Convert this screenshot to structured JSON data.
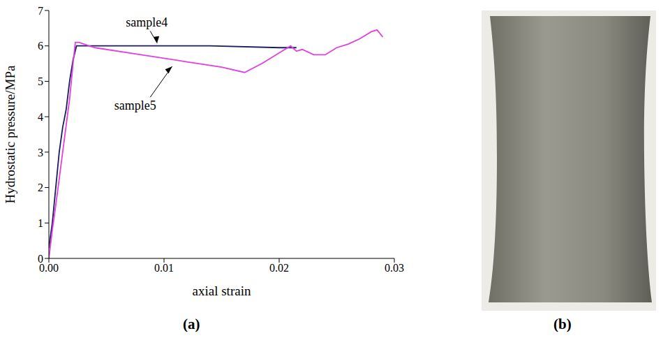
{
  "chart_data": {
    "type": "line",
    "x_label": "axial strain",
    "y_label": "Hydrostatic pressure/MPa",
    "xlim": [
      0,
      0.03
    ],
    "ylim": [
      0,
      7
    ],
    "xticks": [
      {
        "value": 0,
        "label": "0.00"
      },
      0.01,
      0.02,
      0.03
    ],
    "yticks": [
      0,
      1,
      2,
      3,
      4,
      5,
      6,
      7
    ],
    "series": [
      {
        "name": "sample4",
        "color": "#1c1c60",
        "x": [
          0,
          0.0003,
          0.0006,
          0.0009,
          0.0012,
          0.0015,
          0.0018,
          0.0021,
          0.0024,
          0.005,
          0.014,
          0.02,
          0.0215
        ],
        "values": [
          0.3,
          1,
          2,
          3,
          3.7,
          4.2,
          5,
          5.6,
          6.0,
          6.0,
          6.0,
          5.95,
          5.95
        ]
      },
      {
        "name": "sample5",
        "color": "#e040e0",
        "x": [
          0,
          0.0003,
          0.0006,
          0.001,
          0.0014,
          0.0018,
          0.0021,
          0.0023,
          0.0026,
          0.004,
          0.008,
          0.012,
          0.015,
          0.017,
          0.0185,
          0.02,
          0.021,
          0.0215,
          0.022,
          0.023,
          0.024,
          0.025,
          0.026,
          0.027,
          0.028,
          0.0285,
          0.029
        ],
        "values": [
          0,
          0.8,
          1.5,
          2.5,
          3.5,
          4.5,
          5.5,
          6.1,
          6.1,
          5.95,
          5.75,
          5.55,
          5.4,
          5.25,
          5.5,
          5.8,
          6.0,
          5.85,
          5.9,
          5.75,
          5.75,
          5.95,
          6.05,
          6.2,
          6.4,
          6.45,
          6.25
        ]
      }
    ]
  },
  "panel_labels": [
    "(a)",
    "(b)"
  ]
}
